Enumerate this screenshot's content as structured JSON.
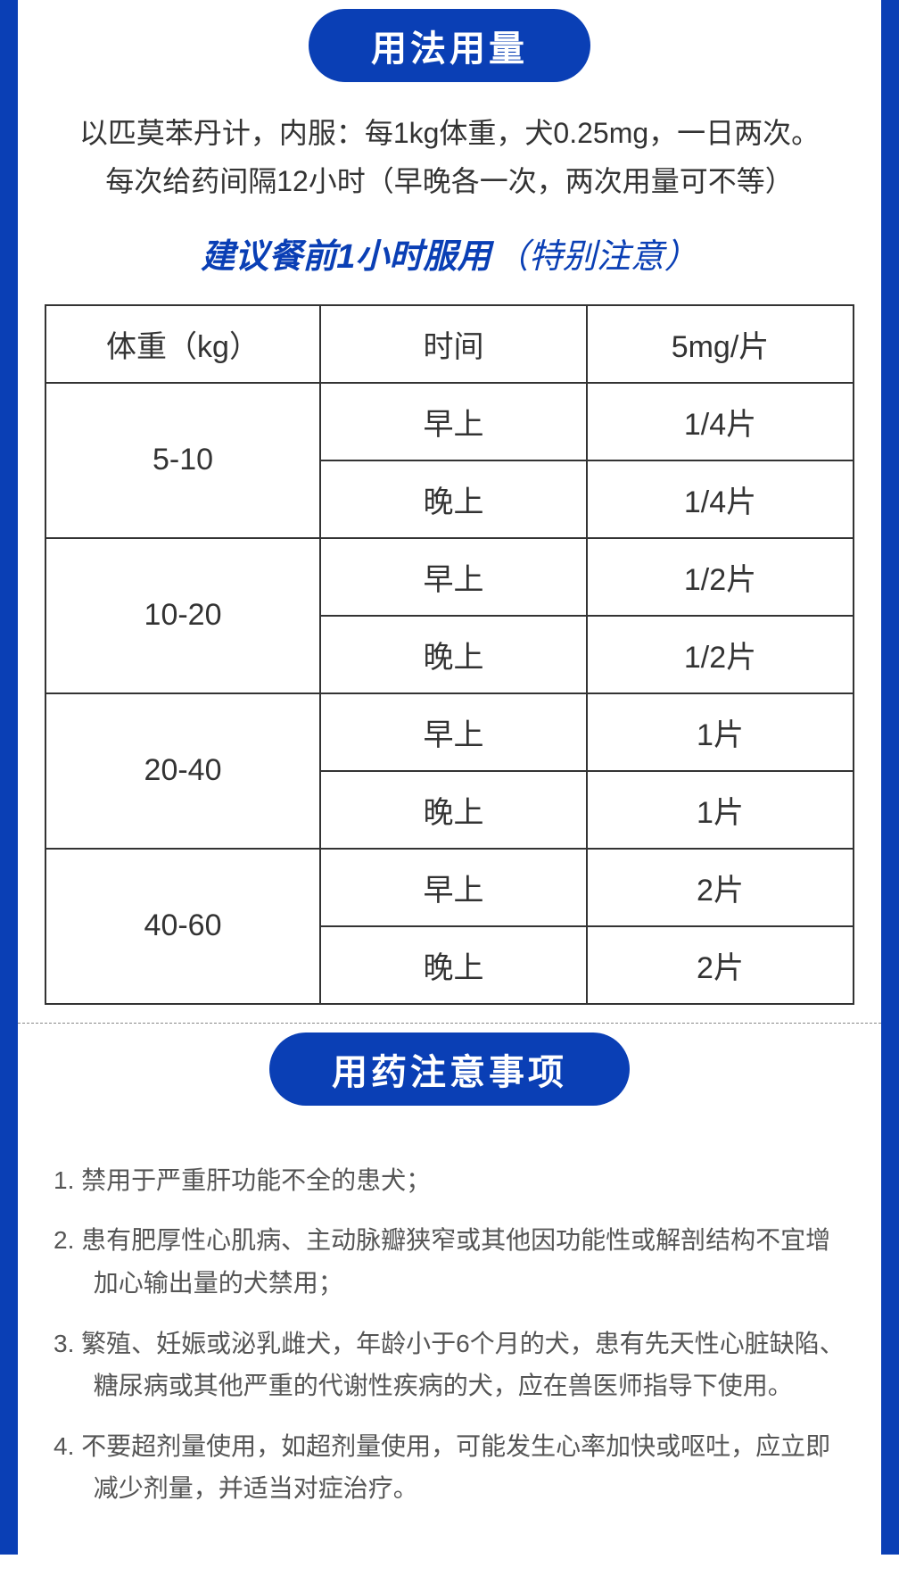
{
  "colors": {
    "primary_blue": "#0a3fb5",
    "text_dark": "#333333",
    "text_gray": "#555555",
    "border_dark": "#333333",
    "background": "#ffffff"
  },
  "section1": {
    "title": "用法用量",
    "intro_line1": "以匹莫苯丹计，内服：每1kg体重，犬0.25mg，一日两次。",
    "intro_line2": "每次给药间隔12小时（早晚各一次，两次用量可不等）",
    "emphasis_bold": "建议餐前1小时服用",
    "emphasis_note": "（特别注意）"
  },
  "table": {
    "headers": {
      "weight": "体重（kg）",
      "time": "时间",
      "dose": "5mg/片"
    },
    "rows": [
      {
        "weight": "5-10",
        "morning_label": "早上",
        "morning_dose": "1/4片",
        "evening_label": "晚上",
        "evening_dose": "1/4片"
      },
      {
        "weight": "10-20",
        "morning_label": "早上",
        "morning_dose": "1/2片",
        "evening_label": "晚上",
        "evening_dose": "1/2片"
      },
      {
        "weight": "20-40",
        "morning_label": "早上",
        "morning_dose": "1片",
        "evening_label": "晚上",
        "evening_dose": "1片"
      },
      {
        "weight": "40-60",
        "morning_label": "早上",
        "morning_dose": "2片",
        "evening_label": "晚上",
        "evening_dose": "2片"
      }
    ]
  },
  "section2": {
    "title": "用药注意事项",
    "items": [
      "1. 禁用于严重肝功能不全的患犬；",
      "2. 患有肥厚性心肌病、主动脉瓣狭窄或其他因功能性或解剖结构不宜增加心输出量的犬禁用；",
      "3. 繁殖、妊娠或泌乳雌犬，年龄小于6个月的犬，患有先天性心脏缺陷、糖尿病或其他严重的代谢性疾病的犬，应在兽医师指导下使用。",
      "4. 不要超剂量使用，如超剂量使用，可能发生心率加快或呕吐，应立即减少剂量，并适当对症治疗。"
    ]
  }
}
